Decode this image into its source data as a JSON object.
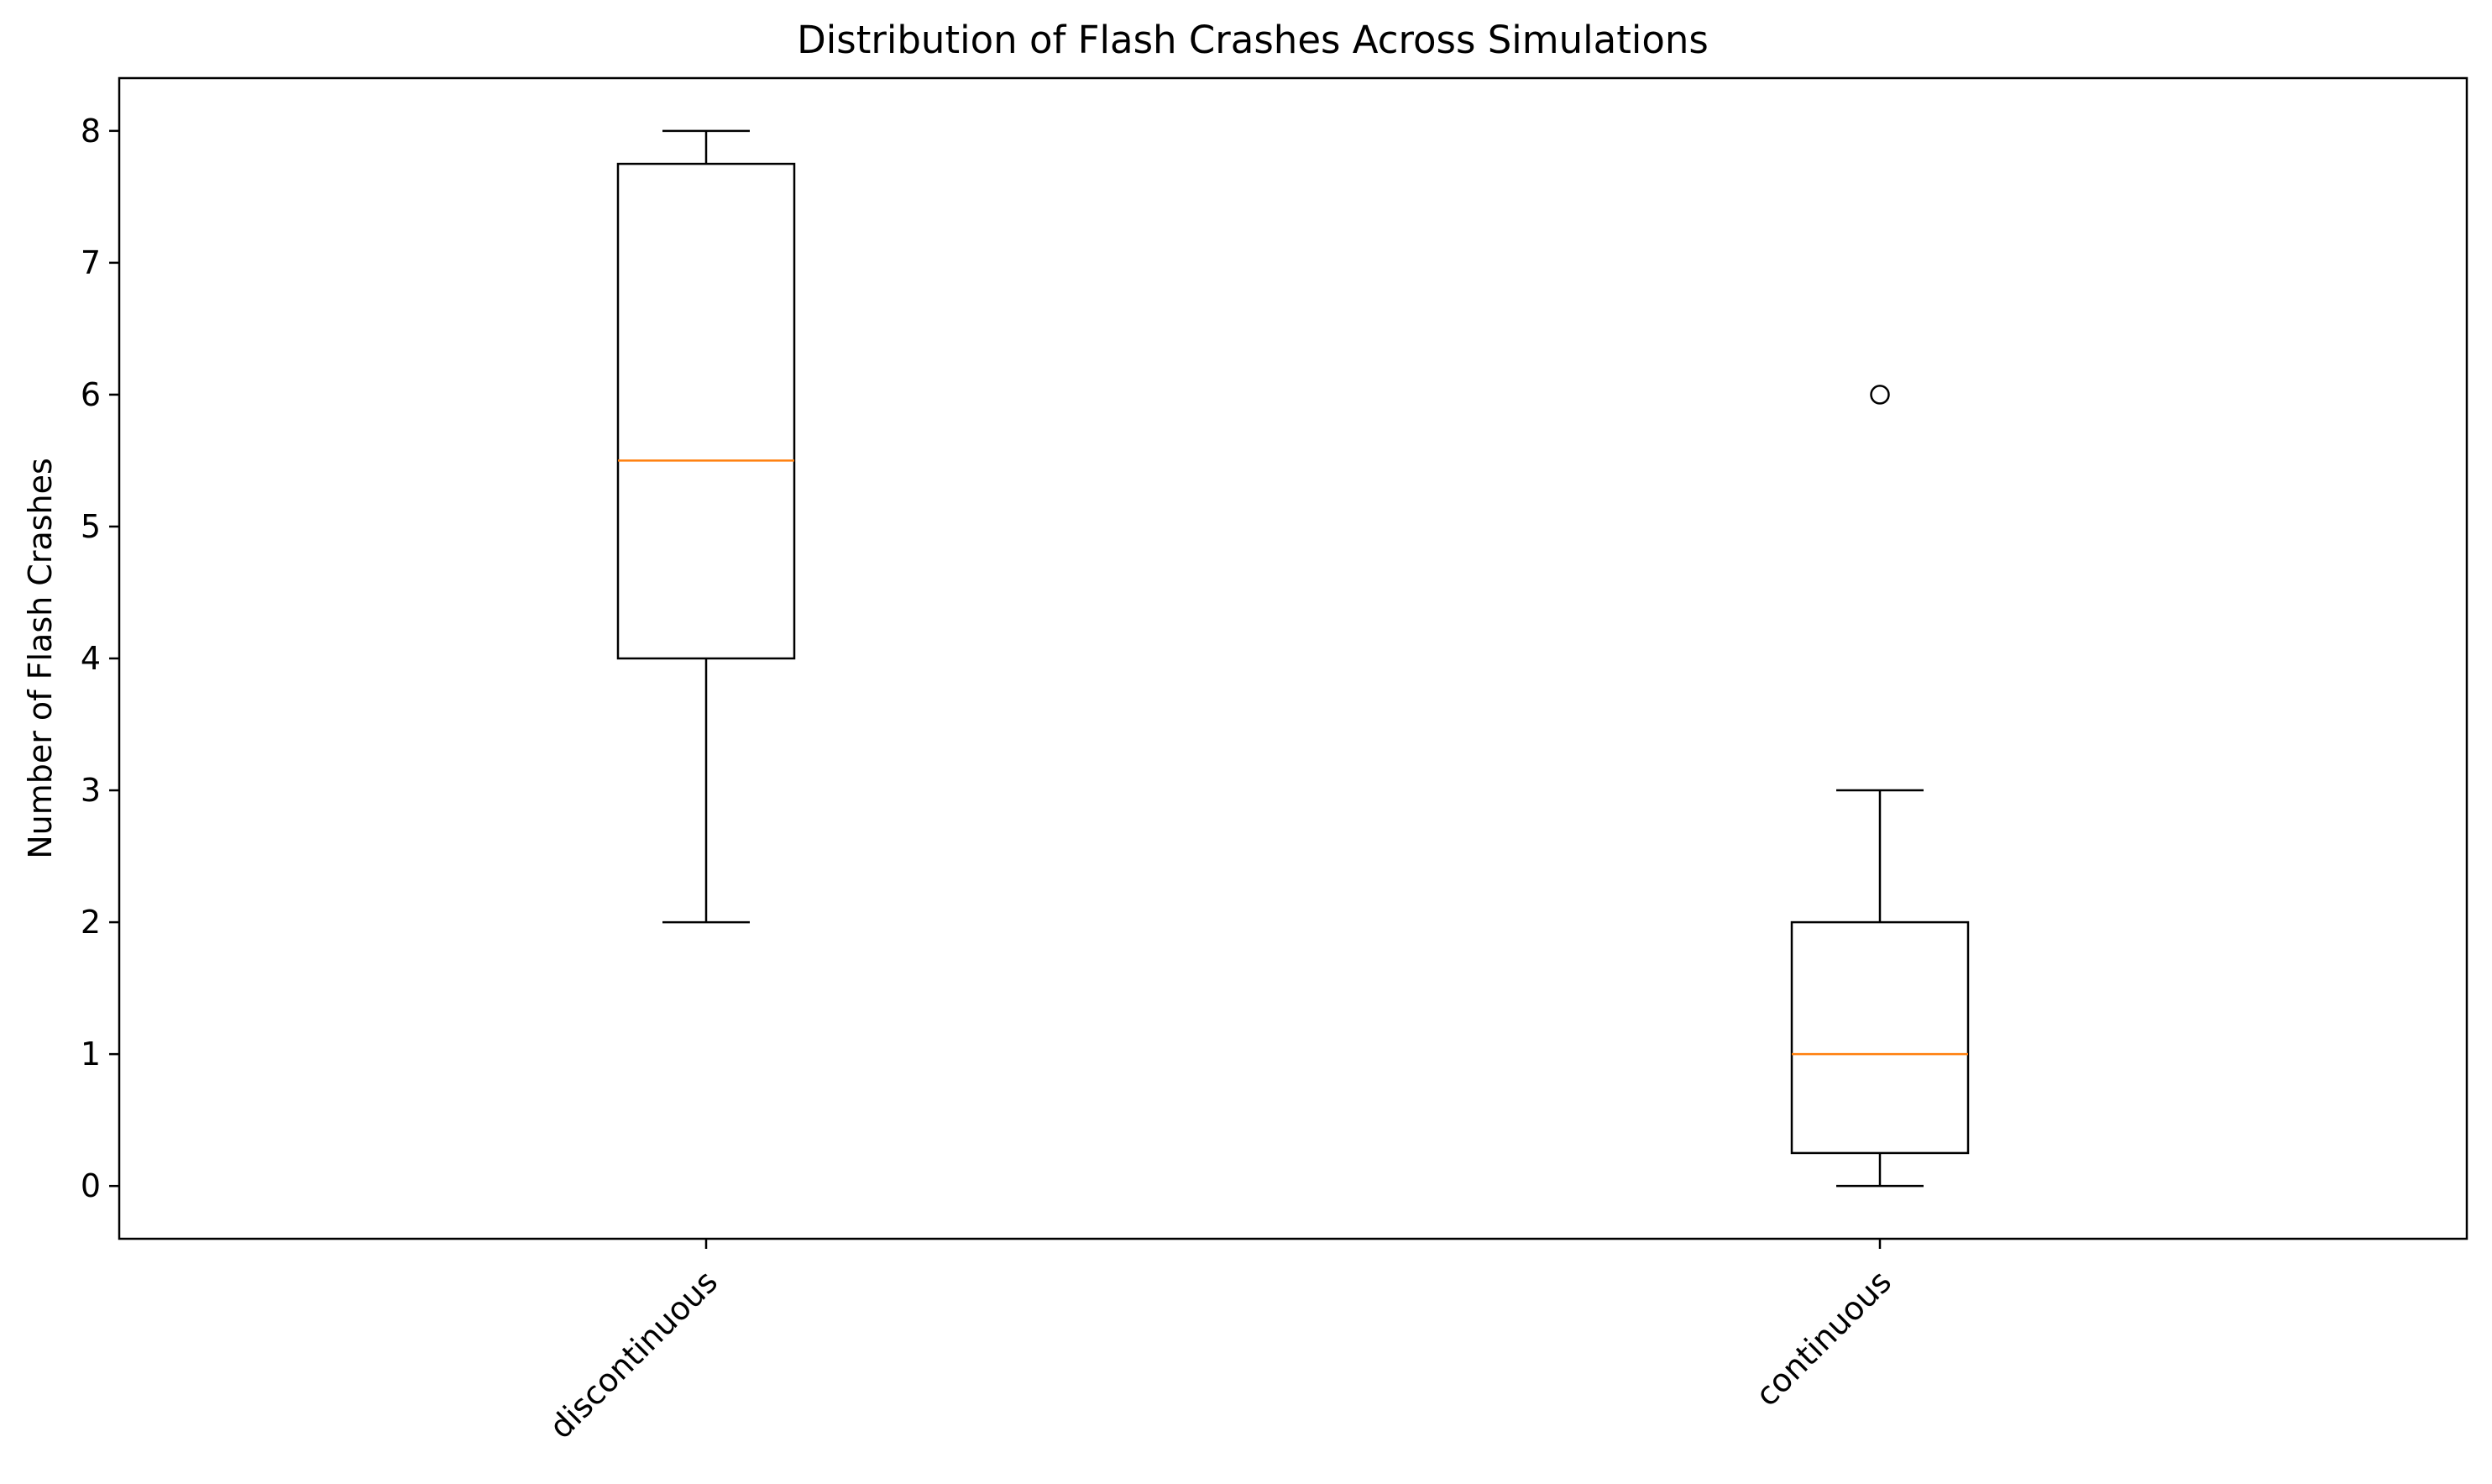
{
  "chart_data": {
    "type": "boxplot",
    "title": "Distribution of Flash Crashes Across Simulations",
    "xlabel": "",
    "ylabel": "Number of Flash Crashes",
    "ylim": [
      -0.4,
      8.4
    ],
    "yticks": [
      0,
      1,
      2,
      3,
      4,
      5,
      6,
      7,
      8
    ],
    "xtick_rotation": 45,
    "grid": false,
    "legend": false,
    "colors": {
      "box": "#000000",
      "median": "#ff7f0e",
      "outlier_edge": "#000000"
    },
    "categories": [
      "discontinuous",
      "continuous"
    ],
    "boxes": [
      {
        "label": "discontinuous",
        "whisker_low": 2,
        "q1": 4,
        "median": 5.5,
        "q3": 7.75,
        "whisker_high": 8,
        "outliers": []
      },
      {
        "label": "continuous",
        "whisker_low": 0,
        "q1": 0.25,
        "median": 1,
        "q3": 2,
        "whisker_high": 3,
        "outliers": [
          6
        ]
      }
    ]
  }
}
